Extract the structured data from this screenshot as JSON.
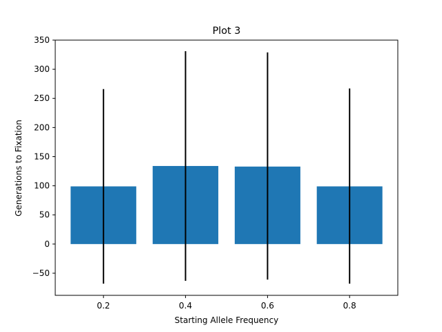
{
  "chart_data": {
    "type": "bar",
    "title": "Plot 3",
    "xlabel": "Starting Allele Frequency",
    "ylabel": "Generations to Fixation",
    "categories": [
      "0.2",
      "0.4",
      "0.6",
      "0.8"
    ],
    "x": [
      0.2,
      0.4,
      0.6,
      0.8
    ],
    "values": [
      99,
      134,
      133,
      99
    ],
    "error_low": [
      -68,
      -63,
      -61,
      -68
    ],
    "error_high": [
      266,
      331,
      329,
      267
    ],
    "xlim": [
      0.0825,
      0.9175
    ],
    "ylim": [
      -88,
      350
    ],
    "yticks": [
      -50,
      0,
      50,
      100,
      150,
      200,
      250,
      300,
      350
    ],
    "ytick_labels": [
      "−50",
      "0",
      "50",
      "100",
      "150",
      "200",
      "250",
      "300",
      "350"
    ],
    "bar_width": 0.16,
    "bar_color": "#1f77b4",
    "errorbar_color": "#000000",
    "grid": false,
    "legend": "none"
  }
}
